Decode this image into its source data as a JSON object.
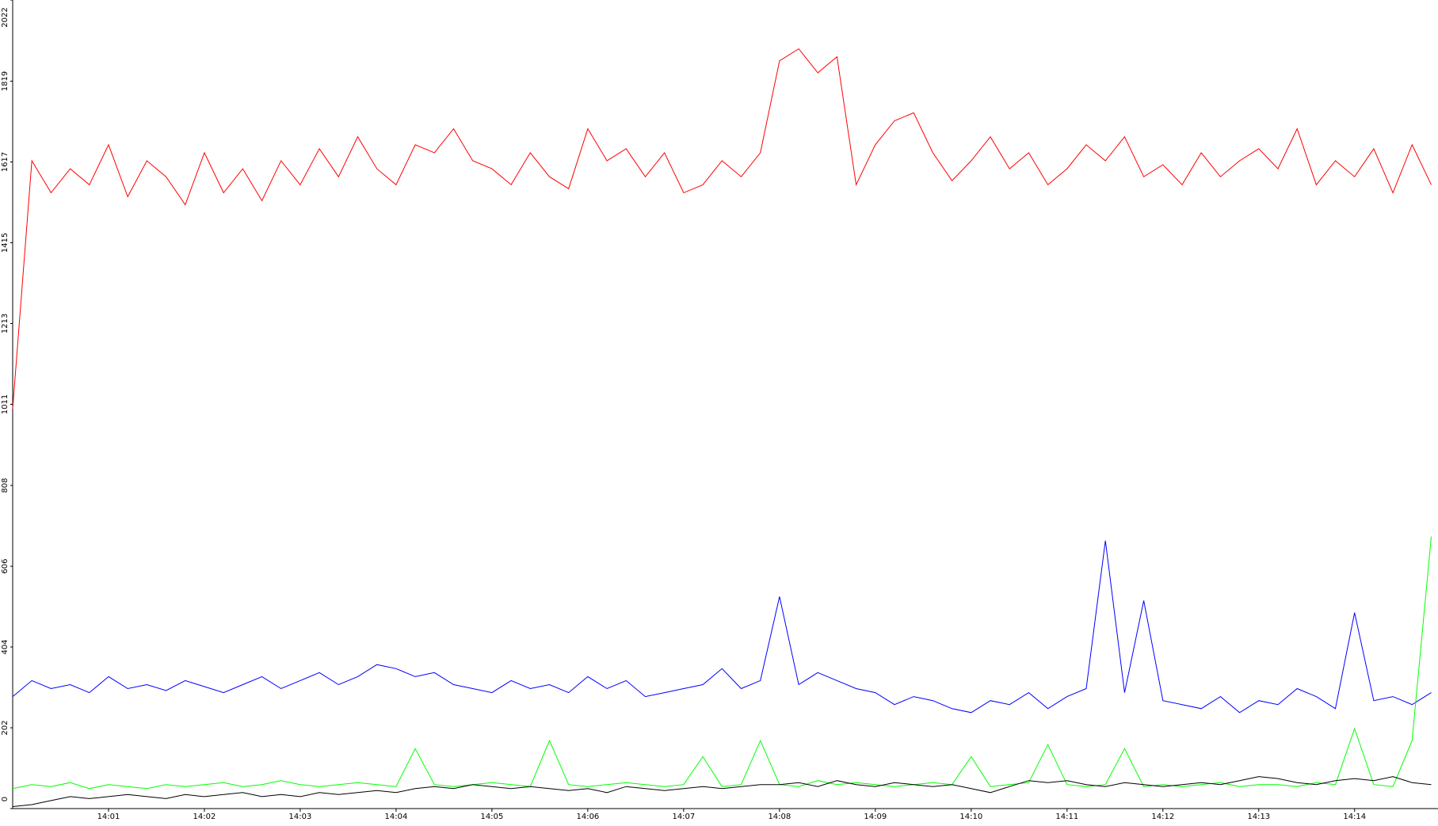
{
  "chart_data": {
    "type": "line",
    "x": [
      840,
      840.2,
      840.4,
      840.6,
      840.8,
      841,
      841.2,
      841.4,
      841.6,
      841.8,
      842,
      842.2,
      842.4,
      842.6,
      842.8,
      843,
      843.2,
      843.4,
      843.6,
      843.8,
      844,
      844.2,
      844.4,
      844.6,
      844.8,
      845,
      845.2,
      845.4,
      845.6,
      845.8,
      846,
      846.2,
      846.4,
      846.6,
      846.8,
      847,
      847.2,
      847.4,
      847.6,
      847.8,
      848,
      848.2,
      848.4,
      848.6,
      848.8,
      849,
      849.2,
      849.4,
      849.6,
      849.8,
      850,
      850.2,
      850.4,
      850.6,
      850.8,
      851,
      851.2,
      851.4,
      851.6,
      851.8,
      852,
      852.2,
      852.4,
      852.6,
      852.8,
      853,
      853.2,
      853.4,
      853.6,
      853.8,
      854,
      854.2,
      854.4,
      854.6,
      854.8
    ],
    "series": [
      {
        "color": "#ff0000",
        "values": [
          1000,
          1620,
          1540,
          1600,
          1560,
          1660,
          1530,
          1620,
          1580,
          1510,
          1640,
          1540,
          1600,
          1520,
          1620,
          1560,
          1650,
          1580,
          1680,
          1600,
          1560,
          1660,
          1640,
          1700,
          1620,
          1600,
          1560,
          1640,
          1580,
          1550,
          1700,
          1620,
          1650,
          1580,
          1640,
          1540,
          1560,
          1620,
          1580,
          1640,
          1870,
          1900,
          1840,
          1880,
          1560,
          1660,
          1720,
          1740,
          1640,
          1570,
          1620,
          1680,
          1600,
          1640,
          1560,
          1600,
          1660,
          1620,
          1680,
          1580,
          1610,
          1560,
          1640,
          1580,
          1620,
          1650,
          1600,
          1700,
          1560,
          1620,
          1580,
          1650,
          1540,
          1660,
          1560
        ]
      },
      {
        "color": "#0000ff",
        "values": [
          280,
          320,
          300,
          310,
          290,
          330,
          300,
          310,
          295,
          320,
          305,
          290,
          310,
          330,
          300,
          320,
          340,
          310,
          330,
          360,
          350,
          330,
          340,
          310,
          300,
          290,
          320,
          300,
          310,
          290,
          330,
          300,
          320,
          280,
          290,
          300,
          310,
          350,
          300,
          320,
          530,
          310,
          340,
          320,
          300,
          290,
          260,
          280,
          270,
          250,
          240,
          270,
          260,
          290,
          250,
          280,
          300,
          670,
          290,
          520,
          270,
          260,
          250,
          280,
          240,
          270,
          260,
          300,
          280,
          250,
          490,
          270,
          280,
          260,
          290
        ]
      },
      {
        "color": "#00ff00",
        "values": [
          50,
          60,
          55,
          65,
          50,
          60,
          55,
          50,
          60,
          55,
          60,
          65,
          55,
          60,
          70,
          60,
          55,
          60,
          65,
          60,
          55,
          150,
          60,
          55,
          60,
          65,
          60,
          55,
          170,
          60,
          55,
          60,
          65,
          60,
          55,
          60,
          130,
          55,
          60,
          170,
          60,
          55,
          70,
          60,
          65,
          60,
          55,
          60,
          65,
          60,
          130,
          55,
          60,
          65,
          160,
          60,
          55,
          60,
          150,
          55,
          60,
          55,
          60,
          65,
          55,
          60,
          60,
          55,
          65,
          60,
          200,
          60,
          55,
          170,
          680
        ]
      },
      {
        "color": "#000000",
        "values": [
          5,
          10,
          20,
          30,
          25,
          30,
          35,
          30,
          25,
          35,
          30,
          35,
          40,
          30,
          35,
          30,
          40,
          35,
          40,
          45,
          40,
          50,
          55,
          50,
          60,
          55,
          50,
          55,
          50,
          45,
          50,
          40,
          55,
          50,
          45,
          50,
          55,
          50,
          55,
          60,
          60,
          65,
          55,
          70,
          60,
          55,
          65,
          60,
          55,
          60,
          50,
          40,
          55,
          70,
          65,
          70,
          60,
          55,
          65,
          60,
          55,
          60,
          65,
          60,
          70,
          80,
          75,
          65,
          60,
          70,
          75,
          70,
          80,
          65,
          60
        ]
      }
    ],
    "xlim": [
      840,
      854.87
    ],
    "xticks": [
      {
        "value": 841,
        "label": "14:01"
      },
      {
        "value": 842,
        "label": "14:02"
      },
      {
        "value": 843,
        "label": "14:03"
      },
      {
        "value": 844,
        "label": "14:04"
      },
      {
        "value": 845,
        "label": "14:05"
      },
      {
        "value": 846,
        "label": "14:06"
      },
      {
        "value": 847,
        "label": "14:07"
      },
      {
        "value": 848,
        "label": "14:08"
      },
      {
        "value": 849,
        "label": "14:09"
      },
      {
        "value": 850,
        "label": "14:10"
      },
      {
        "value": 851,
        "label": "14:11"
      },
      {
        "value": 852,
        "label": "14:12"
      },
      {
        "value": 853,
        "label": "14:13"
      },
      {
        "value": 854,
        "label": "14:14"
      }
    ],
    "ylim": [
      0,
      2022
    ],
    "yticks": [
      0,
      202,
      404,
      606,
      808,
      1011,
      1213,
      1415,
      1617,
      1819,
      2022
    ]
  }
}
